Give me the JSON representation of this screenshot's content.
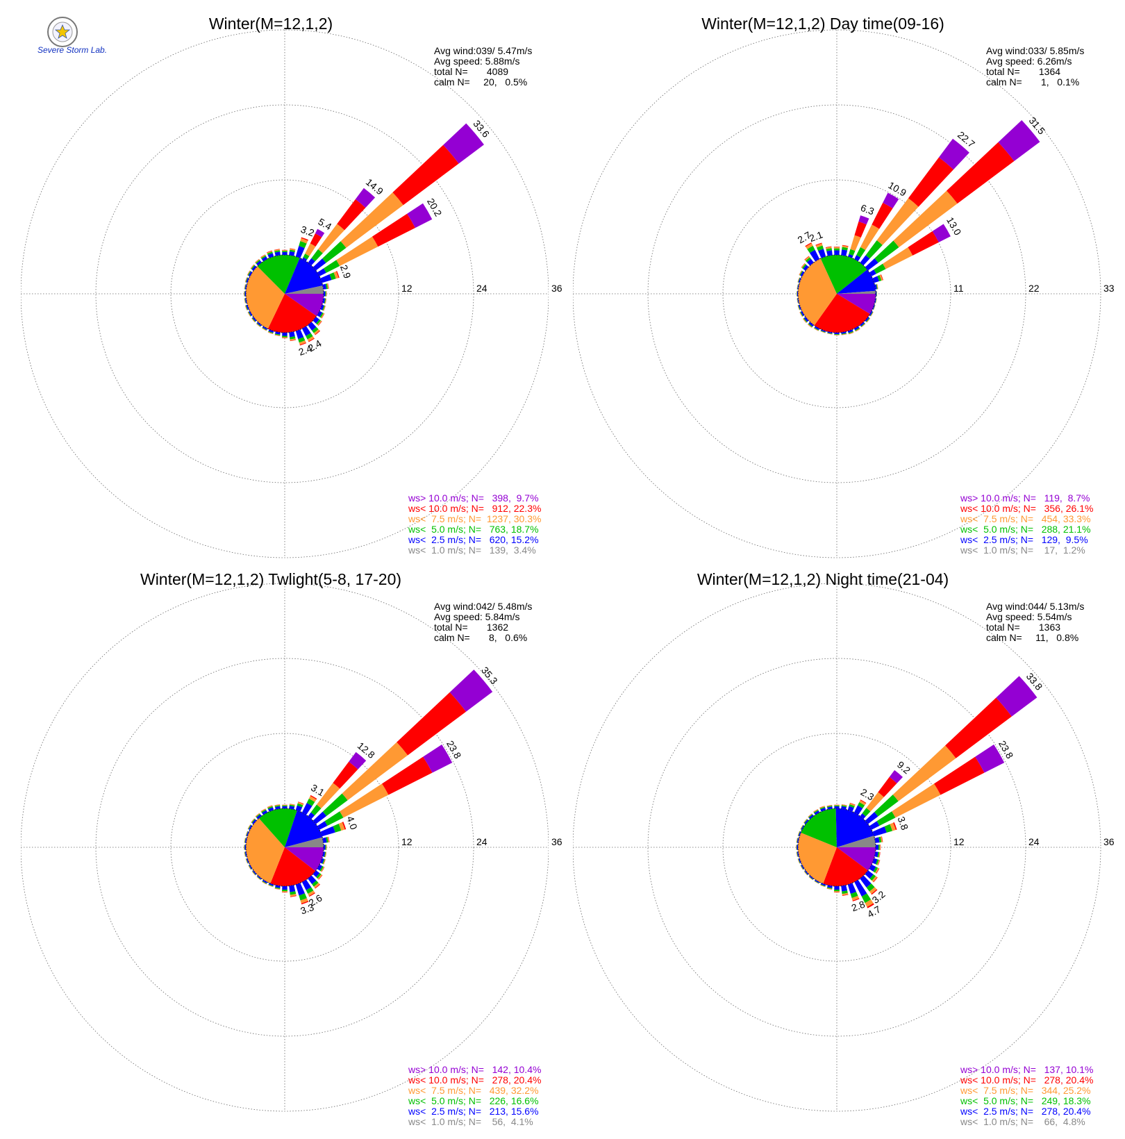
{
  "logo": {
    "text": "Severe Storm Lab."
  },
  "colors": {
    "ws>10.0": "#9400d3",
    "ws<10.0": "#ff0000",
    "ws<7.5": "#ff9933",
    "ws<5.0": "#00c000",
    "ws<2.5": "#0000ff",
    "ws<1.0": "#888888"
  },
  "chart_data": [
    {
      "type": "wind-rose",
      "title": "Winter(M=12,1,2)",
      "stats": [
        "Avg wind:039/ 5.47m/s",
        "Avg speed: 5.88m/s",
        "total N=       4089",
        "calm N=     20,   0.5%"
      ],
      "rings": [
        12,
        24,
        36
      ],
      "ring_labels": [
        "12",
        "24",
        "36"
      ],
      "bars": [
        {
          "dir": 0,
          "value": 0.8
        },
        {
          "dir": 10,
          "value": 1.1
        },
        {
          "dir": 20,
          "value": 3.2
        },
        {
          "dir": 30,
          "value": 5.4
        },
        {
          "dir": 40,
          "value": 14.9
        },
        {
          "dir": 50,
          "value": 33.6
        },
        {
          "dir": 60,
          "value": 20.2
        },
        {
          "dir": 70,
          "value": 2.9
        },
        {
          "dir": 80,
          "value": 0.9
        },
        {
          "dir": 90,
          "value": 0.5
        },
        {
          "dir": 100,
          "value": 0.5
        },
        {
          "dir": 110,
          "value": 0.6
        },
        {
          "dir": 120,
          "value": 0.9
        },
        {
          "dir": 130,
          "value": 1.2
        },
        {
          "dir": 140,
          "value": 2.0
        },
        {
          "dir": 150,
          "value": 2.4
        },
        {
          "dir": 160,
          "value": 2.4
        },
        {
          "dir": 170,
          "value": 1.4
        },
        {
          "dir": 180,
          "value": 0.9
        },
        {
          "dir": 190,
          "value": 0.6
        },
        {
          "dir": 200,
          "value": 0.5
        },
        {
          "dir": 210,
          "value": 0.4
        },
        {
          "dir": 220,
          "value": 0.4
        },
        {
          "dir": 230,
          "value": 0.4
        },
        {
          "dir": 240,
          "value": 0.4
        },
        {
          "dir": 250,
          "value": 0.4
        },
        {
          "dir": 260,
          "value": 0.3
        },
        {
          "dir": 270,
          "value": 0.3
        },
        {
          "dir": 280,
          "value": 0.3
        },
        {
          "dir": 290,
          "value": 0.4
        },
        {
          "dir": 300,
          "value": 0.5
        },
        {
          "dir": 310,
          "value": 0.6
        },
        {
          "dir": 320,
          "value": 0.7
        },
        {
          "dir": 330,
          "value": 0.8
        },
        {
          "dir": 340,
          "value": 1.0
        },
        {
          "dir": 350,
          "value": 1.0
        }
      ],
      "bar_labels": [
        {
          "dir": 20,
          "text": "3.2"
        },
        {
          "dir": 30,
          "text": "5.4"
        },
        {
          "dir": 40,
          "text": "14.9"
        },
        {
          "dir": 50,
          "text": "33.6"
        },
        {
          "dir": 60,
          "text": "20.2"
        },
        {
          "dir": 70,
          "text": "2.9"
        },
        {
          "dir": 150,
          "text": "2.4"
        },
        {
          "dir": 160,
          "text": "2.4"
        }
      ],
      "legend": [
        {
          "key": "ws>10.0",
          "text": "ws> 10.0 m/s; N=   398,  9.7%",
          "n": 398,
          "pct": 9.7
        },
        {
          "key": "ws<10.0",
          "text": "ws< 10.0 m/s; N=   912, 22.3%",
          "n": 912,
          "pct": 22.3
        },
        {
          "key": "ws<7.5",
          "text": "ws<  7.5 m/s; N=  1237, 30.3%",
          "n": 1237,
          "pct": 30.3
        },
        {
          "key": "ws<5.0",
          "text": "ws<  5.0 m/s; N=   763, 18.7%",
          "n": 763,
          "pct": 18.7
        },
        {
          "key": "ws<2.5",
          "text": "ws<  2.5 m/s; N=   620, 15.2%",
          "n": 620,
          "pct": 15.2
        },
        {
          "key": "ws<1.0",
          "text": "ws<  1.0 m/s; N=   139,  3.4%",
          "n": 139,
          "pct": 3.4
        }
      ]
    },
    {
      "type": "wind-rose",
      "title": "Winter(M=12,1,2) Day time(09-16)",
      "stats": [
        "Avg wind:033/ 5.85m/s",
        "Avg speed: 6.26m/s",
        "total N=       1364",
        "calm N=       1,   0.1%"
      ],
      "rings": [
        11,
        22,
        33
      ],
      "ring_labels": [
        "11",
        "22",
        "33"
      ],
      "bars": [
        {
          "dir": 0,
          "value": 1.2
        },
        {
          "dir": 10,
          "value": 1.5
        },
        {
          "dir": 20,
          "value": 6.3
        },
        {
          "dir": 30,
          "value": 10.9
        },
        {
          "dir": 40,
          "value": 22.7
        },
        {
          "dir": 50,
          "value": 31.5
        },
        {
          "dir": 60,
          "value": 13.0
        },
        {
          "dir": 70,
          "value": 1.4
        },
        {
          "dir": 80,
          "value": 0.4
        },
        {
          "dir": 90,
          "value": 0.2
        },
        {
          "dir": 100,
          "value": 0.2
        },
        {
          "dir": 110,
          "value": 0.2
        },
        {
          "dir": 120,
          "value": 0.3
        },
        {
          "dir": 130,
          "value": 0.4
        },
        {
          "dir": 140,
          "value": 0.4
        },
        {
          "dir": 150,
          "value": 0.5
        },
        {
          "dir": 160,
          "value": 0.5
        },
        {
          "dir": 170,
          "value": 0.4
        },
        {
          "dir": 180,
          "value": 0.4
        },
        {
          "dir": 190,
          "value": 0.3
        },
        {
          "dir": 200,
          "value": 0.3
        },
        {
          "dir": 210,
          "value": 0.4
        },
        {
          "dir": 220,
          "value": 0.5
        },
        {
          "dir": 230,
          "value": 0.5
        },
        {
          "dir": 240,
          "value": 0.4
        },
        {
          "dir": 250,
          "value": 0.3
        },
        {
          "dir": 260,
          "value": 0.2
        },
        {
          "dir": 270,
          "value": 0.2
        },
        {
          "dir": 280,
          "value": 0.2
        },
        {
          "dir": 290,
          "value": 0.3
        },
        {
          "dir": 300,
          "value": 0.5
        },
        {
          "dir": 310,
          "value": 0.8
        },
        {
          "dir": 320,
          "value": 1.2
        },
        {
          "dir": 330,
          "value": 2.7
        },
        {
          "dir": 340,
          "value": 2.1
        },
        {
          "dir": 350,
          "value": 1.3
        }
      ],
      "bar_labels": [
        {
          "dir": 330,
          "text": "2.7"
        },
        {
          "dir": 340,
          "text": "2.1"
        },
        {
          "dir": 20,
          "text": "6.3"
        },
        {
          "dir": 30,
          "text": "10.9"
        },
        {
          "dir": 40,
          "text": "22.7"
        },
        {
          "dir": 50,
          "text": "31.5"
        },
        {
          "dir": 60,
          "text": "13.0"
        }
      ],
      "legend": [
        {
          "key": "ws>10.0",
          "text": "ws> 10.0 m/s; N=   119,  8.7%",
          "n": 119,
          "pct": 8.7
        },
        {
          "key": "ws<10.0",
          "text": "ws< 10.0 m/s; N=   356, 26.1%",
          "n": 356,
          "pct": 26.1
        },
        {
          "key": "ws<7.5",
          "text": "ws<  7.5 m/s; N=   454, 33.3%",
          "n": 454,
          "pct": 33.3
        },
        {
          "key": "ws<5.0",
          "text": "ws<  5.0 m/s; N=   288, 21.1%",
          "n": 288,
          "pct": 21.1
        },
        {
          "key": "ws<2.5",
          "text": "ws<  2.5 m/s; N=   129,  9.5%",
          "n": 129,
          "pct": 9.5
        },
        {
          "key": "ws<1.0",
          "text": "ws<  1.0 m/s; N=    17,  1.2%",
          "n": 17,
          "pct": 1.2
        }
      ]
    },
    {
      "type": "wind-rose",
      "title": "Winter(M=12,1,2) Twlight(5-8, 17-20)",
      "stats": [
        "Avg wind:042/ 5.48m/s",
        "Avg speed: 5.84m/s",
        "total N=       1362",
        "calm N=       8,   0.6%"
      ],
      "rings": [
        12,
        24,
        36
      ],
      "ring_labels": [
        "12",
        "24",
        "36"
      ],
      "bars": [
        {
          "dir": 0,
          "value": 0.6
        },
        {
          "dir": 10,
          "value": 0.8
        },
        {
          "dir": 20,
          "value": 1.4
        },
        {
          "dir": 30,
          "value": 3.1
        },
        {
          "dir": 40,
          "value": 12.8
        },
        {
          "dir": 50,
          "value": 35.3
        },
        {
          "dir": 60,
          "value": 23.8
        },
        {
          "dir": 70,
          "value": 4.0
        },
        {
          "dir": 80,
          "value": 1.0
        },
        {
          "dir": 90,
          "value": 0.5
        },
        {
          "dir": 100,
          "value": 0.5
        },
        {
          "dir": 110,
          "value": 0.6
        },
        {
          "dir": 120,
          "value": 0.9
        },
        {
          "dir": 130,
          "value": 1.3
        },
        {
          "dir": 140,
          "value": 2.0
        },
        {
          "dir": 150,
          "value": 2.6
        },
        {
          "dir": 160,
          "value": 3.3
        },
        {
          "dir": 170,
          "value": 1.8
        },
        {
          "dir": 180,
          "value": 1.0
        },
        {
          "dir": 190,
          "value": 0.6
        },
        {
          "dir": 200,
          "value": 0.4
        },
        {
          "dir": 210,
          "value": 0.4
        },
        {
          "dir": 220,
          "value": 0.3
        },
        {
          "dir": 230,
          "value": 0.3
        },
        {
          "dir": 240,
          "value": 0.3
        },
        {
          "dir": 250,
          "value": 0.3
        },
        {
          "dir": 260,
          "value": 0.3
        },
        {
          "dir": 270,
          "value": 0.3
        },
        {
          "dir": 280,
          "value": 0.3
        },
        {
          "dir": 290,
          "value": 0.3
        },
        {
          "dir": 300,
          "value": 0.4
        },
        {
          "dir": 310,
          "value": 0.5
        },
        {
          "dir": 320,
          "value": 0.6
        },
        {
          "dir": 330,
          "value": 0.7
        },
        {
          "dir": 340,
          "value": 0.8
        },
        {
          "dir": 350,
          "value": 0.7
        }
      ],
      "bar_labels": [
        {
          "dir": 30,
          "text": "3.1"
        },
        {
          "dir": 40,
          "text": "12.8"
        },
        {
          "dir": 50,
          "text": "35.3"
        },
        {
          "dir": 60,
          "text": "23.8"
        },
        {
          "dir": 70,
          "text": "4.0"
        },
        {
          "dir": 150,
          "text": "2.6"
        },
        {
          "dir": 160,
          "text": "3.3"
        }
      ],
      "legend": [
        {
          "key": "ws>10.0",
          "text": "ws> 10.0 m/s; N=   142, 10.4%",
          "n": 142,
          "pct": 10.4
        },
        {
          "key": "ws<10.0",
          "text": "ws< 10.0 m/s; N=   278, 20.4%",
          "n": 278,
          "pct": 20.4
        },
        {
          "key": "ws<7.5",
          "text": "ws<  7.5 m/s; N=   439, 32.2%",
          "n": 439,
          "pct": 32.2
        },
        {
          "key": "ws<5.0",
          "text": "ws<  5.0 m/s; N=   226, 16.6%",
          "n": 226,
          "pct": 16.6
        },
        {
          "key": "ws<2.5",
          "text": "ws<  2.5 m/s; N=   213, 15.6%",
          "n": 213,
          "pct": 15.6
        },
        {
          "key": "ws<1.0",
          "text": "ws<  1.0 m/s; N=    56,  4.1%",
          "n": 56,
          "pct": 4.1
        }
      ]
    },
    {
      "type": "wind-rose",
      "title": "Winter(M=12,1,2) Night time(21-04)",
      "stats": [
        "Avg wind:044/ 5.13m/s",
        "Avg speed: 5.54m/s",
        "total N=       1363",
        "calm N=     11,   0.8%"
      ],
      "rings": [
        12,
        24,
        36
      ],
      "ring_labels": [
        "12",
        "24",
        "36"
      ],
      "bars": [
        {
          "dir": 0,
          "value": 0.6
        },
        {
          "dir": 10,
          "value": 0.7
        },
        {
          "dir": 20,
          "value": 1.2
        },
        {
          "dir": 30,
          "value": 2.3
        },
        {
          "dir": 40,
          "value": 9.2
        },
        {
          "dir": 50,
          "value": 33.8
        },
        {
          "dir": 60,
          "value": 23.8
        },
        {
          "dir": 70,
          "value": 3.8
        },
        {
          "dir": 80,
          "value": 1.2
        },
        {
          "dir": 90,
          "value": 0.8
        },
        {
          "dir": 100,
          "value": 0.8
        },
        {
          "dir": 110,
          "value": 1.0
        },
        {
          "dir": 120,
          "value": 1.4
        },
        {
          "dir": 130,
          "value": 1.9
        },
        {
          "dir": 140,
          "value": 3.2
        },
        {
          "dir": 150,
          "value": 4.7
        },
        {
          "dir": 160,
          "value": 2.8
        },
        {
          "dir": 170,
          "value": 1.6
        },
        {
          "dir": 180,
          "value": 1.0
        },
        {
          "dir": 190,
          "value": 0.6
        },
        {
          "dir": 200,
          "value": 0.4
        },
        {
          "dir": 210,
          "value": 0.3
        },
        {
          "dir": 220,
          "value": 0.3
        },
        {
          "dir": 230,
          "value": 0.3
        },
        {
          "dir": 240,
          "value": 0.3
        },
        {
          "dir": 250,
          "value": 0.3
        },
        {
          "dir": 260,
          "value": 0.3
        },
        {
          "dir": 270,
          "value": 0.3
        },
        {
          "dir": 280,
          "value": 0.3
        },
        {
          "dir": 290,
          "value": 0.3
        },
        {
          "dir": 300,
          "value": 0.3
        },
        {
          "dir": 310,
          "value": 0.4
        },
        {
          "dir": 320,
          "value": 0.5
        },
        {
          "dir": 330,
          "value": 0.6
        },
        {
          "dir": 340,
          "value": 0.7
        },
        {
          "dir": 350,
          "value": 0.6
        }
      ],
      "bar_labels": [
        {
          "dir": 30,
          "text": "2.3"
        },
        {
          "dir": 40,
          "text": "9.2"
        },
        {
          "dir": 50,
          "text": "33.8"
        },
        {
          "dir": 60,
          "text": "23.8"
        },
        {
          "dir": 70,
          "text": "3.8"
        },
        {
          "dir": 140,
          "text": "3.2"
        },
        {
          "dir": 150,
          "text": "4.7"
        },
        {
          "dir": 160,
          "text": "2.8"
        }
      ],
      "legend": [
        {
          "key": "ws>10.0",
          "text": "ws> 10.0 m/s; N=   137, 10.1%",
          "n": 137,
          "pct": 10.1
        },
        {
          "key": "ws<10.0",
          "text": "ws< 10.0 m/s; N=   278, 20.4%",
          "n": 278,
          "pct": 20.4
        },
        {
          "key": "ws<7.5",
          "text": "ws<  7.5 m/s; N=   344, 25.2%",
          "n": 344,
          "pct": 25.2
        },
        {
          "key": "ws<5.0",
          "text": "ws<  5.0 m/s; N=   249, 18.3%",
          "n": 249,
          "pct": 18.3
        },
        {
          "key": "ws<2.5",
          "text": "ws<  2.5 m/s; N=   278, 20.4%",
          "n": 278,
          "pct": 20.4
        },
        {
          "key": "ws<1.0",
          "text": "ws<  1.0 m/s; N=    66,  4.8%",
          "n": 66,
          "pct": 4.8
        }
      ]
    }
  ]
}
